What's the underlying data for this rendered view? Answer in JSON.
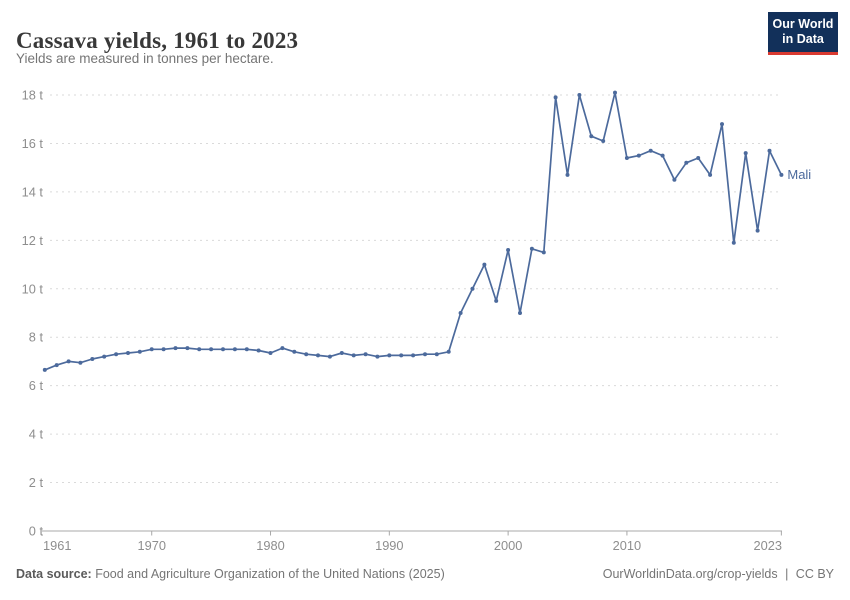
{
  "header": {
    "title": "Cassava yields, 1961 to 2023",
    "subtitle": "Yields are measured in tonnes per hectare.",
    "logo": {
      "line1": "Our World",
      "line2": "in Data"
    }
  },
  "chart_data": {
    "type": "line",
    "title": "Cassava yields, 1961 to 2023",
    "ylabel": "tonnes per hectare",
    "xlabel": "",
    "unit": "t",
    "grid": "horizontal-dashed",
    "legend_position": "end-of-line-label",
    "xlim": [
      1961,
      2023
    ],
    "ylim": [
      0,
      18
    ],
    "x_ticks": [
      {
        "value": 1961,
        "label": "1961"
      },
      {
        "value": 1970,
        "label": "1970"
      },
      {
        "value": 1980,
        "label": "1980"
      },
      {
        "value": 1990,
        "label": "1990"
      },
      {
        "value": 2000,
        "label": "2000"
      },
      {
        "value": 2010,
        "label": "2010"
      },
      {
        "value": 2023,
        "label": "2023"
      }
    ],
    "y_ticks": [
      {
        "value": 0,
        "label": "0 t"
      },
      {
        "value": 2,
        "label": "2 t"
      },
      {
        "value": 4,
        "label": "4 t"
      },
      {
        "value": 6,
        "label": "6 t"
      },
      {
        "value": 8,
        "label": "8 t"
      },
      {
        "value": 10,
        "label": "10 t"
      },
      {
        "value": 12,
        "label": "12 t"
      },
      {
        "value": 14,
        "label": "14 t"
      },
      {
        "value": 16,
        "label": "16 t"
      },
      {
        "value": 18,
        "label": "18 t"
      }
    ],
    "series": [
      {
        "name": "Mali",
        "color": "#4C6A9C",
        "x": [
          1961,
          1962,
          1963,
          1964,
          1965,
          1966,
          1967,
          1968,
          1969,
          1970,
          1971,
          1972,
          1973,
          1974,
          1975,
          1976,
          1977,
          1978,
          1979,
          1980,
          1981,
          1982,
          1983,
          1984,
          1985,
          1986,
          1987,
          1988,
          1989,
          1990,
          1991,
          1992,
          1993,
          1994,
          1995,
          1996,
          1997,
          1998,
          1999,
          2000,
          2001,
          2002,
          2003,
          2004,
          2005,
          2006,
          2007,
          2008,
          2009,
          2010,
          2011,
          2012,
          2013,
          2014,
          2015,
          2016,
          2017,
          2018,
          2019,
          2020,
          2021,
          2022,
          2023
        ],
        "values": [
          6.65,
          6.85,
          7.0,
          6.95,
          7.1,
          7.2,
          7.3,
          7.35,
          7.4,
          7.5,
          7.5,
          7.55,
          7.55,
          7.5,
          7.5,
          7.5,
          7.5,
          7.5,
          7.45,
          7.35,
          7.55,
          7.4,
          7.3,
          7.25,
          7.2,
          7.35,
          7.25,
          7.3,
          7.2,
          7.25,
          7.25,
          7.25,
          7.3,
          7.3,
          7.4,
          9.0,
          10.0,
          11.0,
          9.5,
          11.6,
          9.0,
          11.65,
          11.5,
          17.9,
          14.7,
          18.0,
          16.3,
          16.1,
          18.1,
          15.4,
          15.5,
          15.7,
          15.5,
          14.5,
          15.2,
          15.4,
          14.7,
          16.8,
          11.9,
          15.6,
          12.4,
          15.7,
          14.7
        ]
      }
    ]
  },
  "footer": {
    "source_label": "Data source:",
    "source_text": "Food and Agriculture Organization of the United Nations (2025)",
    "link_text": "OurWorldinData.org/crop-yields",
    "separator": "|",
    "license": "CC BY"
  },
  "colors": {
    "series_mali": "#4C6A9C",
    "gridline": "#dadada",
    "axis": "#a8a8a8",
    "tick_label": "#8e8e8e",
    "logo_bg": "#12305a",
    "logo_red": "#d93a31"
  }
}
